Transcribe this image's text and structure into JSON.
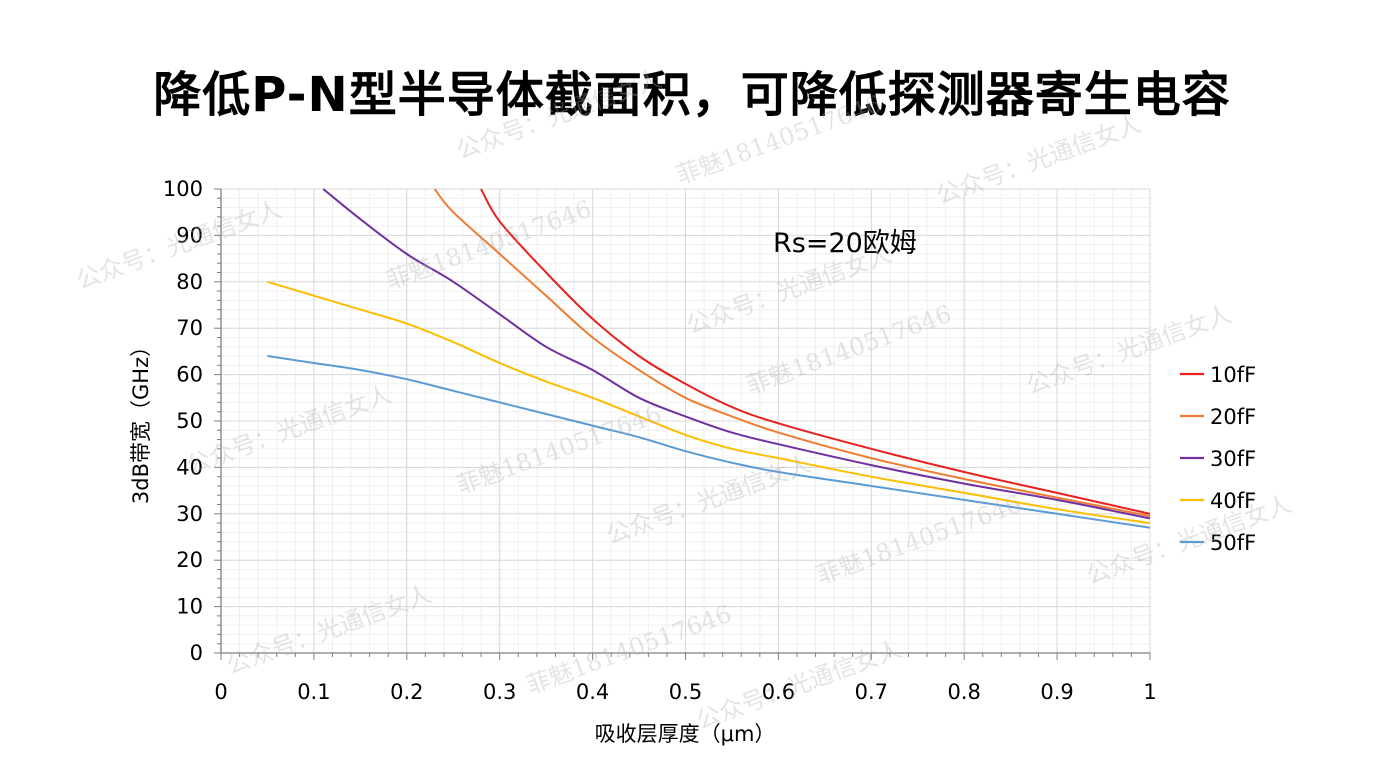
{
  "title": "降低P-N型半导体截面积，可降低探测器寄生电容",
  "watermarks": [
    "公众号：光通信女人",
    "菲魅18140517646"
  ],
  "chart_data": {
    "type": "line",
    "xlabel": "吸收层厚度（μm）",
    "ylabel": "3dB带宽（GHz）",
    "xlim": [
      0,
      1
    ],
    "ylim": [
      0,
      100
    ],
    "xticks": [
      "0",
      "0.1",
      "0.2",
      "0.3",
      "0.4",
      "0.5",
      "0.6",
      "0.7",
      "0.8",
      "0.9",
      "1"
    ],
    "yticks": [
      "0",
      "10",
      "20",
      "30",
      "40",
      "50",
      "60",
      "70",
      "80",
      "90",
      "100"
    ],
    "grid": true,
    "annotation": "Rs=20欧姆",
    "legend_position": "right",
    "series": [
      {
        "name": "10fF",
        "color": "#e8221f",
        "x": [
          0.28,
          0.3,
          0.35,
          0.4,
          0.45,
          0.5,
          0.55,
          0.6,
          0.7,
          0.8,
          0.9,
          1.0
        ],
        "y": [
          100,
          93,
          82,
          72,
          64,
          58,
          53,
          49.5,
          44,
          39,
          34.5,
          30
        ]
      },
      {
        "name": "20fF",
        "color": "#ee7d31",
        "x": [
          0.23,
          0.25,
          0.3,
          0.35,
          0.4,
          0.45,
          0.5,
          0.55,
          0.6,
          0.7,
          0.8,
          0.9,
          1.0
        ],
        "y": [
          100,
          95,
          86,
          77,
          68,
          61,
          55,
          51,
          47.5,
          42,
          37.5,
          33.5,
          29.5
        ]
      },
      {
        "name": "30fF",
        "color": "#7030a0",
        "x": [
          0.11,
          0.15,
          0.2,
          0.25,
          0.3,
          0.35,
          0.4,
          0.45,
          0.5,
          0.55,
          0.6,
          0.7,
          0.8,
          0.9,
          1.0
        ],
        "y": [
          100,
          93.5,
          86,
          80,
          73,
          66,
          61,
          55,
          51,
          47.5,
          45,
          40.5,
          36.5,
          33,
          29
        ]
      },
      {
        "name": "40fF",
        "color": "#fbbe00",
        "x": [
          0.05,
          0.1,
          0.15,
          0.2,
          0.25,
          0.3,
          0.35,
          0.4,
          0.45,
          0.5,
          0.55,
          0.6,
          0.7,
          0.8,
          0.9,
          1.0
        ],
        "y": [
          80,
          77,
          74,
          71,
          67,
          62.5,
          58.5,
          55,
          51,
          47,
          44,
          42,
          38,
          34.5,
          31,
          28
        ]
      },
      {
        "name": "50fF",
        "color": "#5b9bd5",
        "x": [
          0.05,
          0.1,
          0.15,
          0.2,
          0.25,
          0.3,
          0.35,
          0.4,
          0.45,
          0.5,
          0.55,
          0.6,
          0.7,
          0.8,
          0.9,
          1.0
        ],
        "y": [
          64,
          62.5,
          61,
          59,
          56.5,
          54,
          51.5,
          49,
          46.5,
          43.5,
          41,
          39,
          36,
          33,
          30,
          27
        ]
      }
    ]
  }
}
